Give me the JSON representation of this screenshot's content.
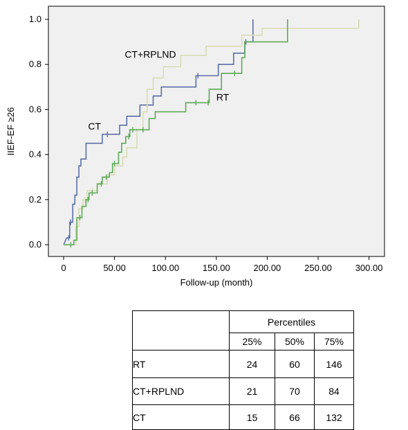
{
  "chart_data": {
    "type": "line",
    "subtype": "kaplan-meier step",
    "xlabel": "Follow-up (month)",
    "ylabel": "IIEF-EF ≥26",
    "xlim": [
      -10,
      305
    ],
    "ylim": [
      -0.05,
      1.05
    ],
    "xticks": [
      0,
      50,
      100,
      150,
      200,
      250,
      300
    ],
    "xtick_labels": [
      "0",
      "50.00",
      "100.00",
      "150.00",
      "200.00",
      "250.00",
      "300.00"
    ],
    "yticks": [
      0,
      0.2,
      0.4,
      0.6,
      0.8,
      1.0
    ],
    "ytick_labels": [
      "0.0",
      "0.2",
      "0.4",
      "0.6",
      "0.8",
      "1.0"
    ],
    "grid": false,
    "legend": "none (series labelled inline)",
    "series": [
      {
        "name": "CT",
        "color": "#5b6fa8",
        "steps": [
          [
            0,
            0
          ],
          [
            3,
            0.03
          ],
          [
            6,
            0.03
          ],
          [
            6,
            0.1
          ],
          [
            9,
            0.1
          ],
          [
            9,
            0.18
          ],
          [
            11,
            0.18
          ],
          [
            11,
            0.22
          ],
          [
            13,
            0.22
          ],
          [
            13,
            0.3
          ],
          [
            15,
            0.3
          ],
          [
            15,
            0.35
          ],
          [
            17,
            0.35
          ],
          [
            17,
            0.38
          ],
          [
            22,
            0.38
          ],
          [
            22,
            0.45
          ],
          [
            38,
            0.45
          ],
          [
            38,
            0.49
          ],
          [
            55,
            0.49
          ],
          [
            55,
            0.53
          ],
          [
            62,
            0.53
          ],
          [
            62,
            0.57
          ],
          [
            75,
            0.57
          ],
          [
            75,
            0.62
          ],
          [
            88,
            0.62
          ],
          [
            88,
            0.66
          ],
          [
            96,
            0.66
          ],
          [
            96,
            0.7
          ],
          [
            130,
            0.7
          ],
          [
            130,
            0.75
          ],
          [
            152,
            0.75
          ],
          [
            152,
            0.8
          ],
          [
            167,
            0.8
          ],
          [
            167,
            0.85
          ],
          [
            178,
            0.85
          ],
          [
            178,
            0.9
          ],
          [
            186,
            0.9
          ],
          [
            186,
            1.0
          ]
        ],
        "censored": [
          [
            5,
            0.03
          ],
          [
            7,
            0.1
          ],
          [
            43,
            0.49
          ],
          [
            132,
            0.75
          ],
          [
            179,
            0.9
          ]
        ]
      },
      {
        "name": "CT+RPLND",
        "color": "#d9dcb4",
        "steps": [
          [
            0,
            0
          ],
          [
            12,
            0
          ],
          [
            12,
            0.08
          ],
          [
            15,
            0.08
          ],
          [
            15,
            0.16
          ],
          [
            19,
            0.16
          ],
          [
            19,
            0.2
          ],
          [
            23,
            0.2
          ],
          [
            23,
            0.24
          ],
          [
            33,
            0.24
          ],
          [
            33,
            0.27
          ],
          [
            43,
            0.27
          ],
          [
            43,
            0.31
          ],
          [
            50,
            0.31
          ],
          [
            50,
            0.35
          ],
          [
            58,
            0.35
          ],
          [
            58,
            0.39
          ],
          [
            62,
            0.39
          ],
          [
            62,
            0.43
          ],
          [
            72,
            0.43
          ],
          [
            72,
            0.51
          ],
          [
            78,
            0.51
          ],
          [
            78,
            0.59
          ],
          [
            82,
            0.59
          ],
          [
            82,
            0.69
          ],
          [
            88,
            0.69
          ],
          [
            88,
            0.74
          ],
          [
            98,
            0.74
          ],
          [
            98,
            0.79
          ],
          [
            115,
            0.79
          ],
          [
            115,
            0.84
          ],
          [
            140,
            0.84
          ],
          [
            140,
            0.88
          ],
          [
            175,
            0.88
          ],
          [
            175,
            0.93
          ],
          [
            195,
            0.93
          ],
          [
            195,
            0.96
          ],
          [
            290,
            0.96
          ],
          [
            290,
            1.0
          ]
        ],
        "censored": [
          [
            18,
            0.16
          ],
          [
            21,
            0.2
          ],
          [
            28,
            0.24
          ],
          [
            35,
            0.27
          ]
        ]
      },
      {
        "name": "RT",
        "color": "#5caa58",
        "steps": [
          [
            0,
            0
          ],
          [
            10,
            0
          ],
          [
            10,
            0.02
          ],
          [
            13,
            0.02
          ],
          [
            13,
            0.12
          ],
          [
            18,
            0.12
          ],
          [
            18,
            0.17
          ],
          [
            22,
            0.17
          ],
          [
            22,
            0.2
          ],
          [
            25,
            0.2
          ],
          [
            25,
            0.23
          ],
          [
            33,
            0.23
          ],
          [
            33,
            0.27
          ],
          [
            38,
            0.27
          ],
          [
            38,
            0.3
          ],
          [
            45,
            0.3
          ],
          [
            45,
            0.32
          ],
          [
            48,
            0.32
          ],
          [
            48,
            0.36
          ],
          [
            54,
            0.36
          ],
          [
            54,
            0.41
          ],
          [
            57,
            0.41
          ],
          [
            57,
            0.45
          ],
          [
            61,
            0.45
          ],
          [
            61,
            0.48
          ],
          [
            65,
            0.48
          ],
          [
            65,
            0.51
          ],
          [
            84,
            0.51
          ],
          [
            84,
            0.56
          ],
          [
            90,
            0.56
          ],
          [
            90,
            0.59
          ],
          [
            120,
            0.59
          ],
          [
            120,
            0.63
          ],
          [
            143,
            0.63
          ],
          [
            143,
            0.69
          ],
          [
            155,
            0.69
          ],
          [
            155,
            0.76
          ],
          [
            175,
            0.76
          ],
          [
            175,
            0.83
          ],
          [
            178,
            0.83
          ],
          [
            178,
            0.9
          ],
          [
            220,
            0.9
          ],
          [
            220,
            1.0
          ]
        ],
        "censored": [
          [
            7,
            0
          ],
          [
            16,
            0.12
          ],
          [
            24,
            0.2
          ],
          [
            28,
            0.23
          ],
          [
            37,
            0.27
          ],
          [
            42,
            0.3
          ],
          [
            50,
            0.36
          ],
          [
            64,
            0.48
          ],
          [
            68,
            0.51
          ],
          [
            78,
            0.51
          ],
          [
            130,
            0.63
          ],
          [
            142,
            0.63
          ],
          [
            168,
            0.76
          ]
        ]
      }
    ],
    "annotations": [
      {
        "text": "CT+RPLND",
        "x": 60,
        "y": 0.83
      },
      {
        "text": "RT",
        "x": 150,
        "y": 0.64
      },
      {
        "text": "CT",
        "x": 24,
        "y": 0.51
      }
    ]
  },
  "percentile_table": {
    "group_header": "Percentiles",
    "columns": [
      "25%",
      "50%",
      "75%"
    ],
    "rows": [
      {
        "label": "RT",
        "values": [
          "24",
          "60",
          "146"
        ]
      },
      {
        "label": "CT+RPLND",
        "values": [
          "21",
          "70",
          "84"
        ]
      },
      {
        "label": "CT",
        "values": [
          "15",
          "66",
          "132"
        ]
      }
    ]
  }
}
